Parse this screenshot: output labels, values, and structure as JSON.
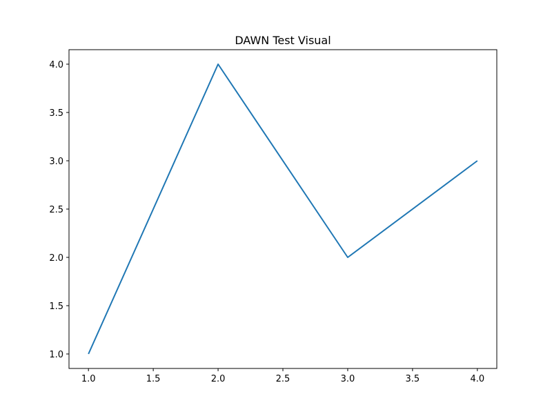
{
  "chart_data": {
    "type": "line",
    "title": "DAWN Test Visual",
    "xlabel": "",
    "ylabel": "",
    "x": [
      1.0,
      2.0,
      3.0,
      4.0
    ],
    "series": [
      {
        "values": [
          1.0,
          4.0,
          2.0,
          3.0
        ],
        "color": "#1f77b4"
      }
    ],
    "xlim": [
      0.85,
      4.15
    ],
    "ylim": [
      0.85,
      4.15
    ],
    "xticks": [
      1.0,
      1.5,
      2.0,
      2.5,
      3.0,
      3.5,
      4.0
    ],
    "xtick_labels": [
      "1.0",
      "1.5",
      "2.0",
      "2.5",
      "3.0",
      "3.5",
      "4.0"
    ],
    "yticks": [
      1.0,
      1.5,
      2.0,
      2.5,
      3.0,
      3.5,
      4.0
    ],
    "ytick_labels": [
      "1.0",
      "1.5",
      "2.0",
      "2.5",
      "3.0",
      "3.5",
      "4.0"
    ],
    "grid": false,
    "legend": false
  }
}
